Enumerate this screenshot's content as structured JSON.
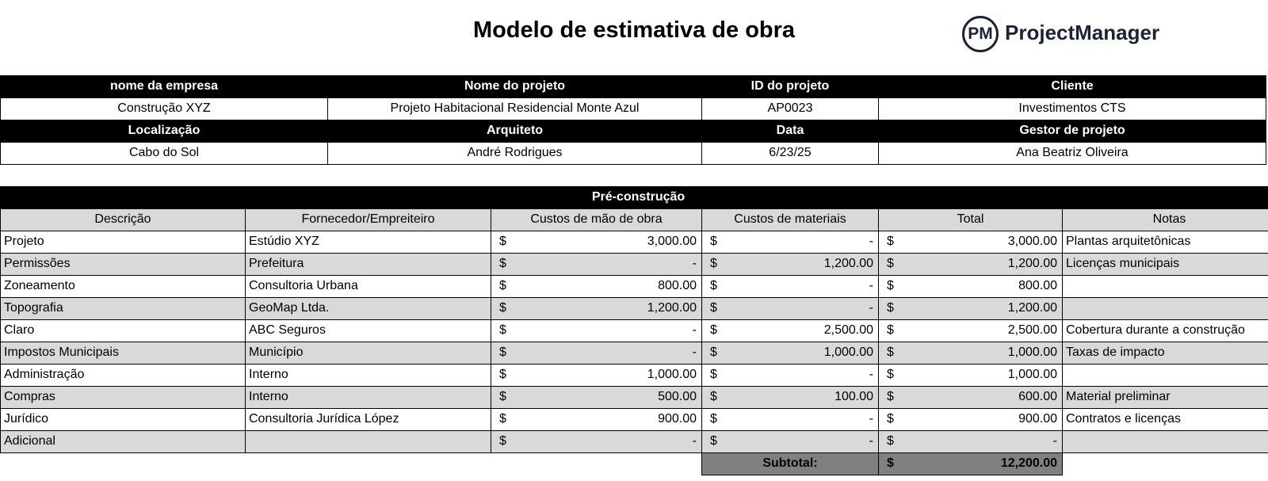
{
  "header": {
    "title": "Modelo de estimativa de obra",
    "logo": {
      "initials": "PM",
      "name": "ProjectManager"
    }
  },
  "info": {
    "rows": [
      [
        "nome da empresa",
        "Nome do projeto",
        "ID do projeto",
        "Cliente"
      ],
      [
        "Construção XYZ",
        "Projeto Habitacional Residencial Monte Azul",
        "AP0023",
        "Investimentos CTS"
      ],
      [
        "Localização",
        "Arquiteto",
        "Data",
        "Gestor de projeto"
      ],
      [
        "Cabo do Sol",
        "André Rodrigues",
        "6/23/25",
        "Ana Beatriz Oliveira"
      ]
    ]
  },
  "table": {
    "title": "Pré-construção",
    "columns": [
      "Descrição",
      "Fornecedor/Empreiteiro",
      "Custos de mão de obra",
      "Custos de materiais",
      "Total",
      "Notas"
    ],
    "currency": "$",
    "rows": [
      [
        "Projeto",
        "Estúdio XYZ",
        "3,000.00",
        "-",
        "3,000.00",
        "Plantas arquitetônicas"
      ],
      [
        "Permissões",
        "Prefeitura",
        "-",
        "1,200.00",
        "1,200.00",
        "Licenças municipais"
      ],
      [
        "Zoneamento",
        "Consultoria Urbana",
        "800.00",
        "-",
        "800.00",
        null
      ],
      [
        "Topografia",
        "GeoMap Ltda.",
        "1,200.00",
        "-",
        "1,200.00",
        null
      ],
      [
        "Claro",
        "ABC Seguros",
        "-",
        "2,500.00",
        "2,500.00",
        "Cobertura durante a construção"
      ],
      [
        "Impostos Municipais",
        "Município",
        "-",
        "1,000.00",
        "1,000.00",
        "Taxas de impacto"
      ],
      [
        "Administração",
        "Interno",
        "1,000.00",
        "-",
        "1,000.00",
        null
      ],
      [
        "Compras",
        "Interno",
        "500.00",
        "100.00",
        "600.00",
        "Material preliminar"
      ],
      [
        "Jurídico",
        "Consultoria Jurídica López",
        "900.00",
        "-",
        "900.00",
        "Contratos e licenças"
      ],
      [
        "Adicional",
        null,
        "-",
        "-",
        "-",
        null
      ]
    ],
    "subtotal": {
      "label": "Subtotal:",
      "value": "12,200.00"
    }
  }
}
